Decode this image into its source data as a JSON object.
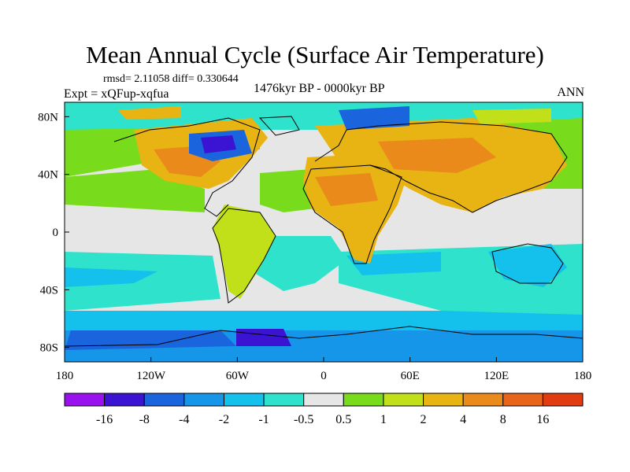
{
  "chart_data": {
    "type": "heatmap",
    "title": "Mean Annual Cycle (Surface Air Temperature)",
    "stats_text": "rmsd= 2.11058 diff= 0.330644",
    "experiment": "Expt = xQFup-xqfua",
    "period": "1476kyr BP - 0000kyr BP",
    "season": "ANN",
    "x_range": [
      -180,
      180
    ],
    "y_range": [
      -90,
      90
    ],
    "x_ticks": [
      {
        "value": -180,
        "label": "180"
      },
      {
        "value": -120,
        "label": "120W"
      },
      {
        "value": -60,
        "label": "60W"
      },
      {
        "value": 0,
        "label": "0"
      },
      {
        "value": 60,
        "label": "60E"
      },
      {
        "value": 120,
        "label": "120E"
      },
      {
        "value": 180,
        "label": "180"
      }
    ],
    "y_ticks": [
      {
        "value": 80,
        "label": "80N"
      },
      {
        "value": 40,
        "label": "40N"
      },
      {
        "value": 0,
        "label": "0"
      },
      {
        "value": -40,
        "label": "40S"
      },
      {
        "value": -80,
        "label": "80S"
      }
    ],
    "colorbar": {
      "levels": [
        "-16",
        "-8",
        "-4",
        "-2",
        "-1",
        "-0.5",
        "0.5",
        "1",
        "2",
        "4",
        "8",
        "16"
      ],
      "colors": [
        "#9a11f0",
        "#3a14d2",
        "#1a64de",
        "#1596e8",
        "#14c0ec",
        "#2ee2cc",
        "#e6e6e6",
        "#78dc1c",
        "#c2e01a",
        "#e8b414",
        "#ea8a1a",
        "#e8641a",
        "#e03c10"
      ]
    }
  }
}
